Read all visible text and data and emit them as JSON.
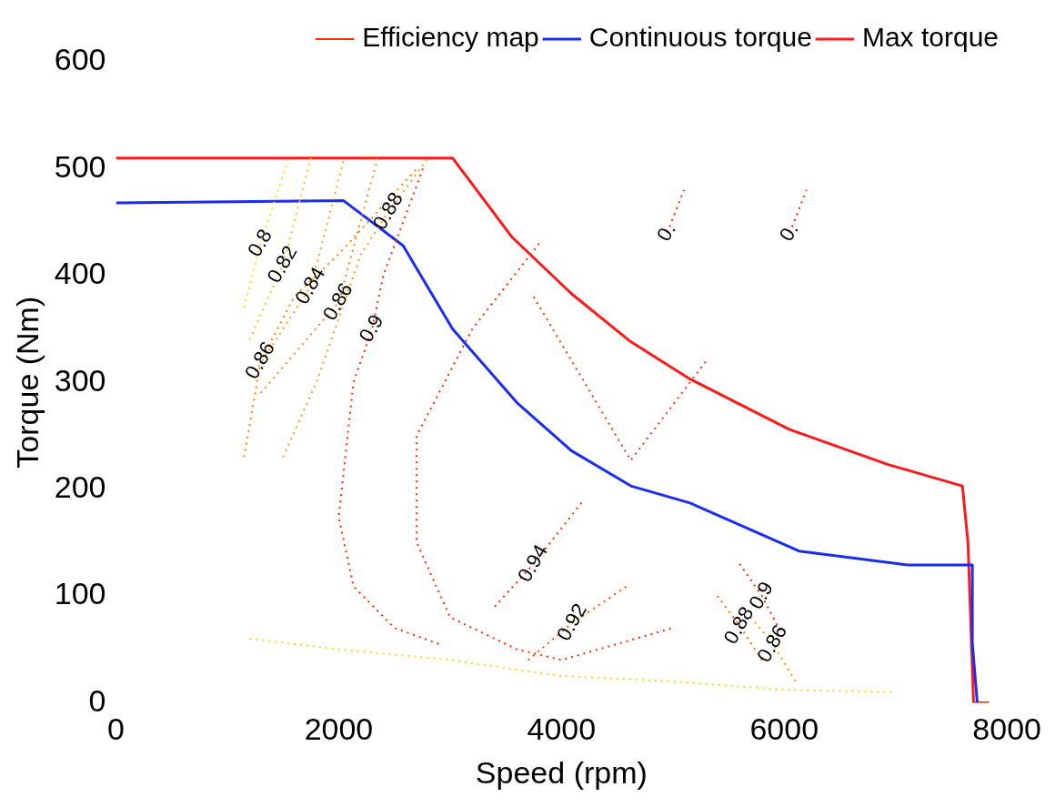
{
  "chart_data": {
    "type": "line",
    "xlabel": "Speed (rpm)",
    "ylabel": "Torque (Nm)",
    "xlim": [
      0,
      8000
    ],
    "xticks": [
      0,
      2000,
      4000,
      6000,
      8000
    ],
    "ylim": [
      0,
      600
    ],
    "yticks": [
      0,
      100,
      200,
      300,
      400,
      500,
      600
    ],
    "grid": false,
    "legend": "top right",
    "marker": "none",
    "series": [
      {
        "name": "Efficiency map",
        "color": "#ff2a00",
        "line_style": "dotted",
        "x": [
          2756,
          2400,
          2300,
          2133,
          2000,
          2133,
          2500,
          2900
        ],
        "values": [
          500,
          400,
          350,
          300,
          174,
          109,
          70,
          55
        ]
      },
      {
        "color": "#ff2a00",
        "line_style": "dotted",
        "x": [
          3800,
          3200,
          2700,
          2700,
          3000,
          3600,
          4000,
          4500,
          5000
        ],
        "values": [
          430,
          350,
          250,
          150,
          80,
          50,
          40,
          55,
          70
        ]
      },
      {
        "color": "#e63a1a",
        "line_style": "dotted",
        "x": [
          3750,
          4622,
          5300
        ],
        "values": [
          380,
          227,
          320
        ]
      },
      {
        "color": "#ff8000",
        "line_style": "dotted",
        "x": [
          1150,
          1300,
          1600,
          2000,
          2700
        ],
        "values": [
          230,
          320,
          380,
          420,
          500
        ]
      },
      {
        "color": "#ff9a1a",
        "line_style": "dotted",
        "x": [
          1500,
          1800,
          2200,
          2450,
          2800
        ],
        "values": [
          230,
          300,
          420,
          460,
          510
        ]
      },
      {
        "color": "#ffd21a",
        "line_style": "dotted",
        "x": [
          1200,
          2000,
          3000,
          4000,
          5000,
          6000,
          7000
        ],
        "values": [
          60,
          50,
          40,
          25,
          20,
          12,
          10
        ]
      },
      {
        "color": "#ffe01a",
        "line_style": "dotted",
        "x": [
          1150,
          1300,
          1550
        ],
        "values": [
          370,
          430,
          510
        ]
      },
      {
        "color": "#ffc21a",
        "line_style": "dotted",
        "x": [
          1200,
          1500,
          1750
        ],
        "values": [
          340,
          410,
          510
        ]
      },
      {
        "color": "#ffa31a",
        "line_style": "dotted",
        "x": [
          1250,
          1750,
          2050
        ],
        "values": [
          310,
          390,
          510
        ]
      },
      {
        "color": "#ff8a1a",
        "line_style": "dotted",
        "x": [
          1300,
          2000,
          2350
        ],
        "values": [
          290,
          375,
          510
        ]
      },
      {
        "color": "#ff2a00",
        "line_style": "dotted",
        "x": [
          3400,
          3750,
          4200
        ],
        "values": [
          90,
          130,
          190
        ]
      },
      {
        "color": "#ff4a00",
        "line_style": "dotted",
        "x": [
          3700,
          4100,
          4600
        ],
        "values": [
          40,
          75,
          110
        ]
      },
      {
        "color": "#ff2a00",
        "line_style": "dotted",
        "x": [
          5600,
          5800,
          6000
        ],
        "values": [
          130,
          100,
          60
        ]
      },
      {
        "color": "#ff6a00",
        "line_style": "dotted",
        "x": [
          5400,
          5600,
          5800
        ],
        "values": [
          100,
          72,
          40
        ]
      },
      {
        "color": "#ff9a00",
        "line_style": "dotted",
        "x": [
          5700,
          5900,
          6100
        ],
        "values": [
          80,
          55,
          20
        ]
      },
      {
        "color": "#ff2a00",
        "line_style": "dotted",
        "x": [
          4950,
          5100
        ],
        "values": [
          440,
          480
        ]
      },
      {
        "color": "#ff2a00",
        "line_style": "dotted",
        "x": [
          6050,
          6200
        ],
        "values": [
          440,
          480
        ]
      },
      {
        "name": "Continuous torque",
        "color": "#1a2cf0",
        "line_style": "solid",
        "x": [
          0,
          2044,
          2578,
          3022,
          3600,
          4089,
          4622,
          5155,
          6133,
          7111,
          7689,
          7689,
          7733
        ],
        "values": [
          468,
          470,
          428,
          350,
          281,
          236,
          203,
          187,
          142,
          129,
          129,
          56,
          0
        ]
      },
      {
        "name": "Max torque",
        "color": "#ff1a1a",
        "line_style": "solid",
        "x": [
          0,
          2900,
          3022,
          3555,
          4089,
          4622,
          5155,
          6044,
          6933,
          7600,
          7650,
          7700,
          7840
        ],
        "values": [
          510,
          510,
          510,
          436,
          383,
          338,
          303,
          256,
          223,
          203,
          150,
          0,
          0
        ]
      }
    ],
    "annotations": [
      {
        "text": "0.8",
        "x": 1300,
        "y": 430
      },
      {
        "text": "0.82",
        "x": 1500,
        "y": 410
      },
      {
        "text": "0.84",
        "x": 1750,
        "y": 390
      },
      {
        "text": "0.86",
        "x": 2000,
        "y": 375
      },
      {
        "text": "0.88",
        "x": 2450,
        "y": 460
      },
      {
        "text": "0.86",
        "x": 1300,
        "y": 320
      },
      {
        "text": "0.9",
        "x": 2300,
        "y": 350
      },
      {
        "text": "0.94",
        "x": 3750,
        "y": 130
      },
      {
        "text": "0.92",
        "x": 4100,
        "y": 75
      },
      {
        "text": "0.9",
        "x": 5800,
        "y": 100
      },
      {
        "text": "0.88",
        "x": 5600,
        "y": 72
      },
      {
        "text": "0.86",
        "x": 5900,
        "y": 55
      },
      {
        "text": "0.",
        "x": 4950,
        "y": 440
      },
      {
        "text": "0.",
        "x": 6050,
        "y": 440
      }
    ]
  }
}
